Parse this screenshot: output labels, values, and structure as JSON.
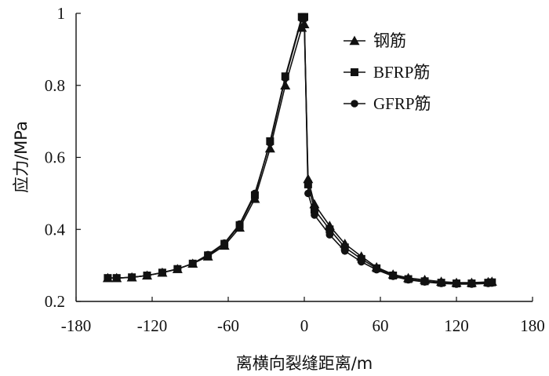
{
  "chart_data": {
    "type": "line",
    "xlabel": "离横向裂缝距离/m",
    "ylabel": "应力/MPa",
    "xlim": [
      -180,
      180
    ],
    "ylim": [
      0.2,
      1.0
    ],
    "xticks": [
      "-180",
      "-120",
      "-60",
      "0",
      "60",
      "120",
      "180"
    ],
    "yticks": [
      "0.2",
      "0.4",
      "0.6",
      "0.8",
      "1"
    ],
    "grid": false,
    "legend_position": "top-right",
    "series": [
      {
        "name": "钢筋",
        "marker": "triangle",
        "x": [
          -155,
          -148,
          -136,
          -124,
          -112,
          -100,
          -88,
          -76,
          -63,
          -51,
          -39,
          -27,
          -15,
          -2,
          0,
          3,
          8,
          20,
          32,
          45,
          57,
          70,
          82,
          95,
          108,
          120,
          132,
          145,
          148
        ],
        "y": [
          0.265,
          0.265,
          0.267,
          0.272,
          0.28,
          0.29,
          0.305,
          0.325,
          0.355,
          0.405,
          0.485,
          0.625,
          0.8,
          0.96,
          0.97,
          0.54,
          0.47,
          0.41,
          0.36,
          0.325,
          0.295,
          0.275,
          0.265,
          0.26,
          0.255,
          0.252,
          0.252,
          0.254,
          0.255
        ]
      },
      {
        "name": "BFRP筋",
        "marker": "square",
        "x": [
          -155,
          -148,
          -136,
          -124,
          -112,
          -100,
          -88,
          -76,
          -63,
          -51,
          -39,
          -27,
          -15,
          -2,
          0,
          3,
          8,
          20,
          32,
          45,
          57,
          70,
          82,
          95,
          108,
          120,
          132,
          145,
          148
        ],
        "y": [
          0.265,
          0.265,
          0.267,
          0.272,
          0.28,
          0.29,
          0.305,
          0.328,
          0.36,
          0.412,
          0.495,
          0.645,
          0.825,
          0.99,
          0.99,
          0.525,
          0.455,
          0.4,
          0.35,
          0.318,
          0.292,
          0.272,
          0.262,
          0.256,
          0.252,
          0.25,
          0.25,
          0.252,
          0.253
        ]
      },
      {
        "name": "GFRP筋",
        "marker": "circle",
        "x": [
          -155,
          -148,
          -136,
          -124,
          -112,
          -100,
          -88,
          -76,
          -63,
          -51,
          -39,
          -27,
          -15,
          -2,
          0,
          3,
          8,
          20,
          32,
          45,
          57,
          70,
          82,
          95,
          108,
          120,
          132,
          145,
          148
        ],
        "y": [
          0.265,
          0.265,
          0.267,
          0.272,
          0.28,
          0.29,
          0.305,
          0.33,
          0.362,
          0.415,
          0.5,
          0.64,
          0.82,
          0.985,
          0.985,
          0.5,
          0.44,
          0.385,
          0.34,
          0.31,
          0.288,
          0.27,
          0.26,
          0.254,
          0.25,
          0.248,
          0.248,
          0.25,
          0.251
        ]
      }
    ]
  }
}
